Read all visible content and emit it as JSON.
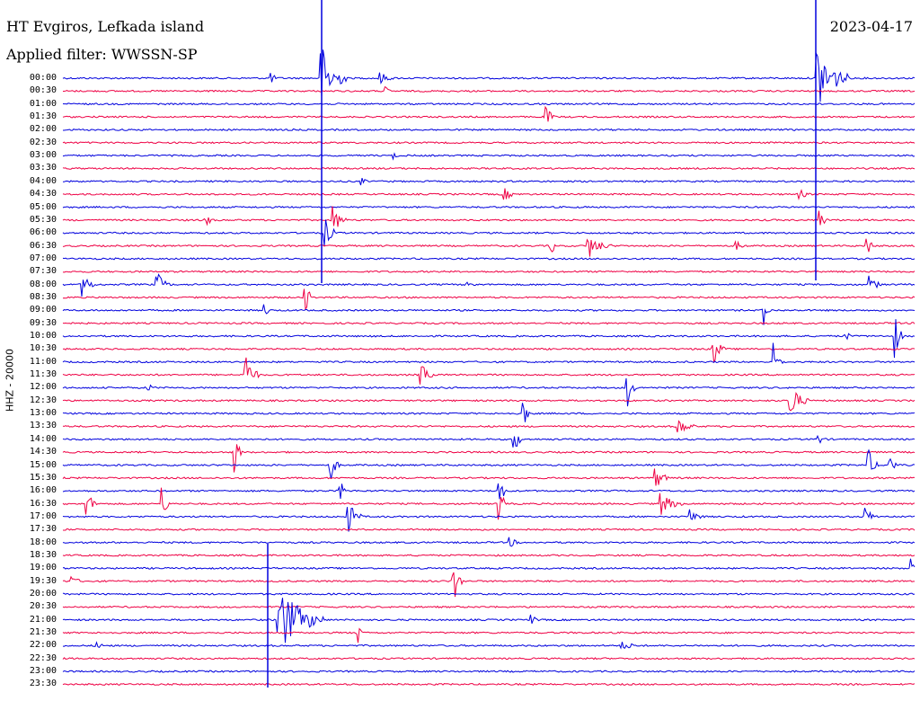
{
  "header": {
    "station": "HT Evgiros, Lefkada island",
    "filter": "Applied filter: WWSSN-SP",
    "date": "2023-04-17"
  },
  "channel": "HHZ - 20000",
  "colors": {
    "trace_a": "#0000dd",
    "trace_b": "#ee0044",
    "background": "#ffffff",
    "text": "#000000"
  },
  "time_labels": [
    "00:00",
    "00:30",
    "01:00",
    "01:30",
    "02:00",
    "02:30",
    "03:00",
    "03:30",
    "04:00",
    "04:30",
    "05:00",
    "05:30",
    "06:00",
    "06:30",
    "07:00",
    "07:30",
    "08:00",
    "08:30",
    "09:00",
    "09:30",
    "10:00",
    "10:30",
    "11:00",
    "11:30",
    "12:00",
    "12:30",
    "13:00",
    "13:30",
    "14:00",
    "14:30",
    "15:00",
    "15:30",
    "16:00",
    "16:30",
    "17:00",
    "17:30",
    "18:00",
    "18:30",
    "19:00",
    "19:30",
    "20:00",
    "20:30",
    "21:00",
    "21:30",
    "22:00",
    "22:30",
    "23:00",
    "23:30"
  ]
}
